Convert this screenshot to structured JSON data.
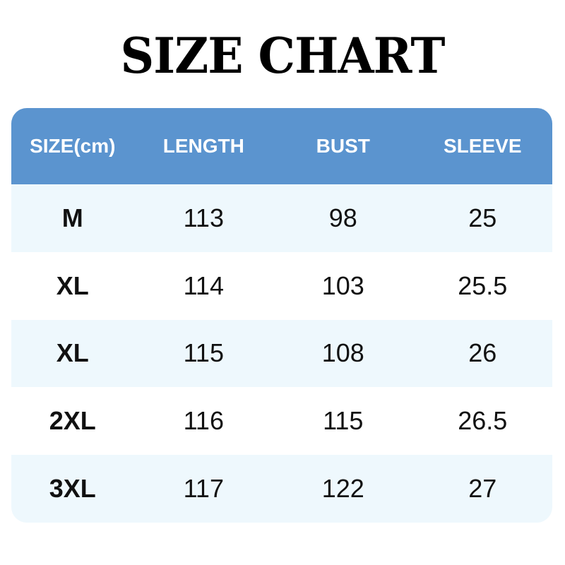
{
  "title": "SIZE CHART",
  "colors": {
    "header_bg": "#5b94cf",
    "alt_row_bg": "#eef8fd",
    "header_text": "#ffffff"
  },
  "table": {
    "headers": [
      "SIZE(cm)",
      "LENGTH",
      "BUST",
      "SLEEVE"
    ],
    "rows": [
      [
        "M",
        "113",
        "98",
        "25"
      ],
      [
        "XL",
        "114",
        "103",
        "25.5"
      ],
      [
        "XL",
        "115",
        "108",
        "26"
      ],
      [
        "2XL",
        "116",
        "115",
        "26.5"
      ],
      [
        "3XL",
        "117",
        "122",
        "27"
      ]
    ]
  }
}
